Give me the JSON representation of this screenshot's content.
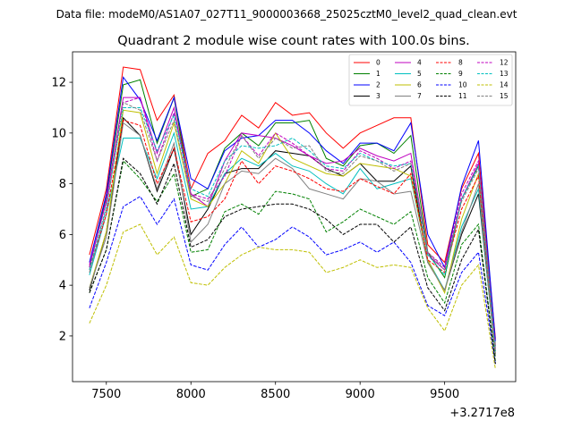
{
  "chart_data": {
    "type": "line",
    "suptitle": "Data file: modeM0/AS1A07_027T11_9000003668_25025cztM0_level2_quad_clean.evt",
    "title": "Quadrant 2 module wise count rates with 100.0s bins.",
    "xlabel": "",
    "ylabel": "",
    "offset_label": "+3.2717e8",
    "xlim": [
      7300,
      9920
    ],
    "ylim": [
      0.2,
      13.2
    ],
    "xticks": [
      7500,
      8000,
      8500,
      9000,
      9500
    ],
    "yticks": [
      2,
      4,
      6,
      8,
      10,
      12
    ],
    "grid": false,
    "legend_position": "top-right",
    "legend_columns": 4,
    "x": [
      7400,
      7500,
      7600,
      7700,
      7800,
      7900,
      8000,
      8100,
      8200,
      8300,
      8400,
      8500,
      8600,
      8700,
      8800,
      8900,
      9000,
      9100,
      9200,
      9300,
      9400,
      9500,
      9600,
      9700,
      9800
    ],
    "series": [
      {
        "name": "0",
        "color": "#ff0000",
        "dash": "solid",
        "values": [
          5.2,
          7.8,
          12.6,
          12.5,
          10.5,
          11.5,
          7.8,
          9.2,
          9.7,
          10.7,
          10.2,
          11.2,
          10.7,
          10.8,
          10.0,
          9.4,
          10.0,
          10.3,
          10.6,
          10.6,
          5.6,
          4.9,
          7.8,
          9.2,
          1.9
        ]
      },
      {
        "name": "1",
        "color": "#008000",
        "dash": "solid",
        "values": [
          4.7,
          7.5,
          11.9,
          12.1,
          9.6,
          11.4,
          7.5,
          7.8,
          9.4,
          10.0,
          9.5,
          10.4,
          10.4,
          10.5,
          9.0,
          8.7,
          9.5,
          9.6,
          9.2,
          9.9,
          5.3,
          4.3,
          7.4,
          8.7,
          1.6
        ]
      },
      {
        "name": "2",
        "color": "#0000ff",
        "dash": "solid",
        "values": [
          4.9,
          7.6,
          12.2,
          11.3,
          9.7,
          11.4,
          8.2,
          7.8,
          9.3,
          9.8,
          9.9,
          10.5,
          10.5,
          10.0,
          9.3,
          8.8,
          9.6,
          9.6,
          9.3,
          10.4,
          6.0,
          4.7,
          7.9,
          9.7,
          1.8
        ]
      },
      {
        "name": "3",
        "color": "#000000",
        "dash": "solid",
        "values": [
          3.8,
          6.1,
          10.6,
          9.9,
          7.7,
          9.4,
          6.0,
          7.0,
          8.4,
          8.6,
          8.6,
          9.3,
          9.2,
          9.1,
          8.6,
          8.3,
          8.8,
          8.1,
          8.1,
          8.7,
          4.9,
          3.8,
          6.0,
          7.6,
          1.3
        ]
      },
      {
        "name": "4",
        "color": "#bf00bf",
        "dash": "solid",
        "values": [
          4.8,
          7.3,
          11.4,
          11.4,
          9.2,
          11.0,
          7.6,
          7.1,
          8.9,
          10.0,
          9.9,
          9.8,
          9.5,
          9.1,
          8.8,
          8.9,
          9.4,
          9.1,
          8.9,
          9.2,
          5.2,
          4.6,
          7.4,
          8.8,
          1.5
        ]
      },
      {
        "name": "5",
        "color": "#00bfbf",
        "dash": "solid",
        "values": [
          4.4,
          6.8,
          9.8,
          9.8,
          8.2,
          10.0,
          7.0,
          7.1,
          8.4,
          9.0,
          8.7,
          9.2,
          8.7,
          8.5,
          8.0,
          7.6,
          8.6,
          7.8,
          8.0,
          8.2,
          5.0,
          3.8,
          6.3,
          7.8,
          1.2
        ]
      },
      {
        "name": "6",
        "color": "#bfbf00",
        "dash": "solid",
        "values": [
          3.9,
          6.1,
          10.9,
          10.8,
          8.4,
          10.4,
          7.4,
          7.1,
          8.0,
          9.3,
          8.8,
          10.0,
          9.0,
          8.7,
          8.4,
          8.3,
          8.8,
          8.7,
          8.6,
          8.3,
          5.0,
          3.7,
          6.6,
          8.4,
          1.2
        ]
      },
      {
        "name": "7",
        "color": "#808080",
        "dash": "solid",
        "values": [
          3.9,
          5.9,
          10.4,
          9.9,
          7.8,
          9.6,
          5.7,
          6.4,
          8.0,
          8.5,
          8.4,
          9.0,
          8.6,
          7.8,
          7.6,
          7.4,
          8.2,
          8.1,
          7.6,
          7.7,
          4.9,
          3.8,
          6.1,
          8.0,
          1.2
        ]
      },
      {
        "name": "8",
        "color": "#ff0000",
        "dash": "dashed",
        "values": [
          4.6,
          6.8,
          10.5,
          10.3,
          8.0,
          9.4,
          6.5,
          6.7,
          7.4,
          8.9,
          8.0,
          8.7,
          8.5,
          8.2,
          7.8,
          7.7,
          8.2,
          7.9,
          7.6,
          8.4,
          5.0,
          4.5,
          7.0,
          8.3,
          1.4
        ]
      },
      {
        "name": "9",
        "color": "#008000",
        "dash": "dashed",
        "values": [
          3.7,
          5.4,
          8.9,
          8.2,
          7.3,
          8.4,
          5.3,
          5.4,
          6.9,
          7.2,
          6.8,
          7.7,
          7.6,
          7.4,
          6.1,
          6.5,
          7.0,
          6.7,
          6.4,
          6.9,
          4.3,
          3.3,
          5.6,
          6.4,
          1.0
        ]
      },
      {
        "name": "10",
        "color": "#0000ff",
        "dash": "dashed",
        "values": [
          3.1,
          4.9,
          7.1,
          7.5,
          6.4,
          7.4,
          4.8,
          4.6,
          5.6,
          6.3,
          5.5,
          5.8,
          6.3,
          5.9,
          5.2,
          5.4,
          5.7,
          5.3,
          5.7,
          4.9,
          3.2,
          2.8,
          4.5,
          5.3,
          0.9
        ]
      },
      {
        "name": "11",
        "color": "#000000",
        "dash": "dashed",
        "values": [
          3.7,
          5.4,
          9.0,
          8.4,
          7.2,
          8.8,
          5.5,
          5.8,
          6.7,
          7.0,
          7.1,
          7.2,
          7.2,
          7.0,
          6.6,
          6.0,
          6.4,
          6.4,
          5.7,
          6.3,
          3.9,
          3.0,
          5.0,
          6.2,
          0.9
        ]
      },
      {
        "name": "12",
        "color": "#bf00bf",
        "dash": "dashed",
        "values": [
          4.7,
          7.4,
          11.2,
          11.4,
          8.9,
          10.8,
          7.6,
          7.4,
          8.3,
          9.9,
          9.1,
          10.0,
          9.6,
          9.1,
          8.6,
          8.5,
          9.3,
          9.0,
          8.6,
          8.9,
          5.3,
          4.7,
          7.6,
          8.9,
          1.4
        ]
      },
      {
        "name": "13",
        "color": "#00bfbf",
        "dash": "dashed",
        "values": [
          4.6,
          7.1,
          11.0,
          11.0,
          9.3,
          10.7,
          7.8,
          7.5,
          8.9,
          9.5,
          9.4,
          9.5,
          9.8,
          9.3,
          8.7,
          8.6,
          9.2,
          8.9,
          8.7,
          8.8,
          5.2,
          4.4,
          7.4,
          8.7,
          1.4
        ]
      },
      {
        "name": "14",
        "color": "#bfbf00",
        "dash": "dashed",
        "values": [
          2.5,
          4.0,
          6.1,
          6.4,
          5.2,
          5.9,
          4.1,
          4.0,
          4.7,
          5.2,
          5.5,
          5.4,
          5.4,
          5.3,
          4.5,
          4.7,
          5.0,
          4.7,
          4.8,
          4.7,
          3.1,
          2.2,
          4.0,
          4.8,
          0.7
        ]
      },
      {
        "name": "15",
        "color": "#808080",
        "dash": "dashed",
        "values": [
          4.5,
          7.0,
          11.2,
          10.9,
          8.9,
          10.5,
          7.5,
          7.3,
          8.6,
          9.9,
          9.0,
          9.8,
          9.4,
          9.5,
          8.5,
          8.4,
          9.1,
          8.9,
          8.5,
          8.8,
          5.3,
          4.6,
          7.3,
          8.6,
          1.4
        ]
      }
    ]
  }
}
